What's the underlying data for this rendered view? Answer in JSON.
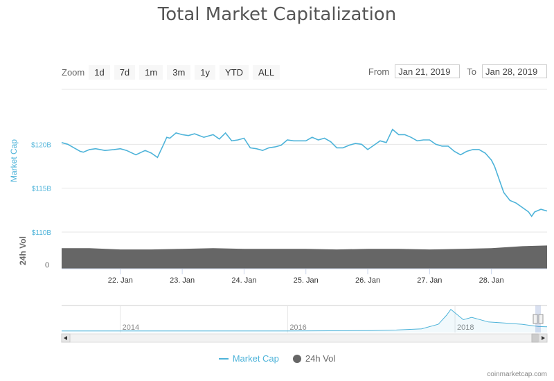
{
  "title": "Total Market Capitalization",
  "zoom": {
    "label": "Zoom",
    "buttons": [
      "1d",
      "7d",
      "1m",
      "3m",
      "1y",
      "YTD",
      "ALL"
    ]
  },
  "range": {
    "from_label": "From",
    "from_value": "Jan 21, 2019",
    "to_label": "To",
    "to_value": "Jan 28, 2019"
  },
  "legend": {
    "market_cap": "Market Cap",
    "volume": "24h Vol"
  },
  "credits": "coinmarketcap.com",
  "colors": {
    "market_cap": "#4db3d9",
    "volume": "#666666"
  },
  "chart_data": {
    "type": "line",
    "title": "Total Market Capitalization",
    "xlabel": "",
    "ylabel": "Market Cap",
    "y2label": "24h Vol",
    "ylim": [
      110,
      125
    ],
    "y_tick_labels": [
      "$110B",
      "$115B",
      "$120B"
    ],
    "y_ticks": [
      110,
      115,
      120
    ],
    "y2_tick_labels": [
      "0"
    ],
    "x_tick_labels": [
      "22. Jan",
      "23. Jan",
      "24. Jan",
      "25. Jan",
      "26. Jan",
      "27. Jan",
      "28. Jan"
    ],
    "x_ticks": [
      1,
      2,
      3,
      4,
      5,
      6,
      7
    ],
    "xlim": [
      0.05,
      7.9
    ],
    "market_cap_series": {
      "name": "Market Cap",
      "x": [
        0.05,
        0.15,
        0.25,
        0.35,
        0.4,
        0.5,
        0.6,
        0.75,
        0.9,
        1.0,
        1.1,
        1.25,
        1.4,
        1.5,
        1.6,
        1.7,
        1.75,
        1.8,
        1.85,
        1.9,
        2.0,
        2.1,
        2.2,
        2.35,
        2.5,
        2.6,
        2.7,
        2.8,
        2.9,
        3.0,
        3.1,
        3.2,
        3.3,
        3.4,
        3.5,
        3.6,
        3.7,
        3.8,
        3.9,
        4.0,
        4.1,
        4.2,
        4.3,
        4.4,
        4.5,
        4.6,
        4.7,
        4.8,
        4.9,
        5.0,
        5.1,
        5.2,
        5.3,
        5.4,
        5.5,
        5.6,
        5.7,
        5.8,
        5.9,
        6.0,
        6.1,
        6.2,
        6.3,
        6.4,
        6.5,
        6.6,
        6.7,
        6.8,
        6.9,
        7.0,
        7.05,
        7.1,
        7.15,
        7.2,
        7.3,
        7.4,
        7.5,
        7.6,
        7.65,
        7.7,
        7.8,
        7.9
      ],
      "values": [
        120.2,
        120.0,
        119.6,
        119.2,
        119.1,
        119.4,
        119.5,
        119.3,
        119.4,
        119.5,
        119.3,
        118.8,
        119.3,
        119.0,
        118.5,
        120.0,
        120.8,
        120.7,
        121.0,
        121.3,
        121.1,
        121.0,
        121.2,
        120.8,
        121.1,
        120.6,
        121.3,
        120.4,
        120.5,
        120.7,
        119.6,
        119.5,
        119.3,
        119.6,
        119.7,
        119.9,
        120.5,
        120.4,
        120.4,
        120.4,
        120.8,
        120.5,
        120.7,
        120.3,
        119.6,
        119.6,
        119.9,
        120.1,
        120.0,
        119.4,
        119.9,
        120.4,
        120.2,
        121.7,
        121.1,
        121.1,
        120.8,
        120.4,
        120.5,
        120.5,
        120.0,
        119.8,
        119.8,
        119.2,
        118.8,
        119.2,
        119.4,
        119.4,
        119.0,
        118.2,
        117.5,
        116.5,
        115.5,
        114.5,
        113.6,
        113.3,
        112.8,
        112.3,
        111.8,
        112.3,
        112.6,
        112.4
      ]
    },
    "volume_series": {
      "name": "24h Vol",
      "x": [
        0.05,
        0.5,
        1.0,
        1.5,
        2.0,
        2.5,
        3.0,
        3.5,
        4.0,
        4.5,
        5.0,
        5.5,
        6.0,
        6.5,
        7.0,
        7.5,
        7.9
      ],
      "values": [
        31,
        31,
        29,
        29,
        30,
        31,
        30,
        30,
        30,
        29,
        30,
        30,
        29,
        30,
        31,
        34,
        35
      ]
    },
    "navigator": {
      "labels": [
        "2014",
        "2016",
        "2018"
      ],
      "label_years": [
        2014,
        2016,
        2018
      ],
      "xlim": [
        2013.3,
        2019.1
      ],
      "x": [
        2013.3,
        2014,
        2015,
        2016,
        2016.5,
        2017,
        2017.3,
        2017.6,
        2017.8,
        2017.9,
        2017.95,
        2018.0,
        2018.1,
        2018.2,
        2018.4,
        2018.6,
        2018.8,
        2019.0,
        2019.1
      ],
      "values": [
        2,
        2,
        2,
        2,
        3,
        5,
        10,
        20,
        60,
        140,
        190,
        160,
        100,
        120,
        80,
        70,
        60,
        40,
        38
      ]
    }
  }
}
